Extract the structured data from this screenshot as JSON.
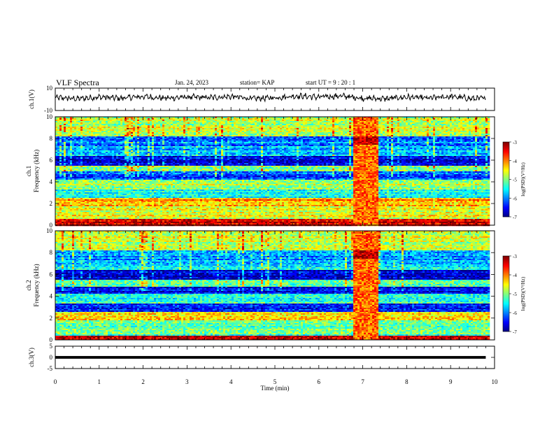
{
  "header": {
    "title": "VLF Spectra",
    "date": "Jan. 24, 2023",
    "station": "station= KAP",
    "start": "start  UT =   9 : 20 : 1"
  },
  "chart_data": [
    {
      "type": "line",
      "panel": "ch1-waveform",
      "ylabel": "ch.1(V)",
      "ylim": [
        -10,
        10
      ],
      "yticks": [
        "10",
        "-10"
      ],
      "x": [
        0.0,
        0.5,
        1.0,
        1.5,
        2.0,
        2.5,
        3.0,
        3.5,
        4.0,
        4.5,
        5.0,
        5.5,
        6.0,
        6.5,
        7.0,
        7.5,
        8.0,
        8.5,
        9.0,
        9.5,
        9.8
      ],
      "values": [
        1.5,
        0.5,
        2.0,
        1.0,
        2.5,
        1.0,
        2.0,
        1.5,
        2.5,
        0.5,
        1.5,
        3.0,
        2.0,
        3.0,
        1.0,
        0.5,
        2.0,
        1.0,
        2.5,
        0.5,
        1.0
      ],
      "line_color": "#000000"
    },
    {
      "type": "heatmap",
      "panel": "ch1-spectrogram",
      "ylabel": "ch.1\nFrequency (kHz)",
      "ylim": [
        0,
        10
      ],
      "yticks": [
        "0",
        "2",
        "4",
        "6",
        "8",
        "10"
      ],
      "xlim": [
        0,
        10
      ],
      "colorbar": {
        "label": "log(PSD)(V²/Hz)",
        "range": [
          -7,
          -3
        ],
        "ticks": [
          "-3",
          "-4",
          "-5",
          "-6",
          "-7"
        ]
      },
      "burst_time_min": [
        6.75,
        7.35
      ],
      "bands_khz": [
        {
          "lo": 0.0,
          "hi": 0.6,
          "level": -3.3
        },
        {
          "lo": 0.6,
          "hi": 1.8,
          "level": -4.6
        },
        {
          "lo": 1.8,
          "hi": 2.6,
          "level": -4.1
        },
        {
          "lo": 2.6,
          "hi": 3.4,
          "level": -5.5
        },
        {
          "lo": 3.4,
          "hi": 4.3,
          "level": -4.8
        },
        {
          "lo": 4.3,
          "hi": 5.0,
          "level": -6.2
        },
        {
          "lo": 5.0,
          "hi": 5.6,
          "level": -5.0
        },
        {
          "lo": 5.6,
          "hi": 6.5,
          "level": -6.6
        },
        {
          "lo": 6.5,
          "hi": 7.4,
          "level": -5.7
        },
        {
          "lo": 7.4,
          "hi": 8.3,
          "level": -6.0
        },
        {
          "lo": 8.3,
          "hi": 10.0,
          "level": -4.8
        }
      ]
    },
    {
      "type": "heatmap",
      "panel": "ch2-spectrogram",
      "ylabel": "ch.2\nFrequency (kHz)",
      "ylim": [
        0,
        10
      ],
      "yticks": [
        "0",
        "2",
        "4",
        "6",
        "8",
        "10"
      ],
      "xlim": [
        0,
        10
      ],
      "colorbar": {
        "label": "log(PSD)(V²/Hz)",
        "range": [
          -7,
          -3
        ],
        "ticks": [
          "-3",
          "-4",
          "-5",
          "-6",
          "-7"
        ]
      },
      "burst_time_min": [
        6.75,
        7.35
      ],
      "bands_khz": [
        {
          "lo": 0.0,
          "hi": 0.4,
          "level": -3.3
        },
        {
          "lo": 0.4,
          "hi": 1.8,
          "level": -5.2
        },
        {
          "lo": 1.8,
          "hi": 2.6,
          "level": -4.5
        },
        {
          "lo": 2.6,
          "hi": 3.4,
          "level": -6.3
        },
        {
          "lo": 3.4,
          "hi": 4.3,
          "level": -5.3
        },
        {
          "lo": 4.3,
          "hi": 5.0,
          "level": -6.6
        },
        {
          "lo": 5.0,
          "hi": 5.6,
          "level": -5.2
        },
        {
          "lo": 5.6,
          "hi": 6.5,
          "level": -6.7
        },
        {
          "lo": 6.5,
          "hi": 7.4,
          "level": -5.6
        },
        {
          "lo": 7.4,
          "hi": 8.3,
          "level": -5.9
        },
        {
          "lo": 8.3,
          "hi": 10.0,
          "level": -4.7
        }
      ]
    },
    {
      "type": "line",
      "panel": "ch3-waveform",
      "ylabel": "ch.3(V)",
      "ylim": [
        -5,
        5
      ],
      "yticks": [
        "5",
        "0",
        "-5"
      ],
      "x": [
        0,
        9.8
      ],
      "values": [
        0,
        0
      ],
      "band_halfwidth_v": 0.6,
      "line_color": "#000000"
    }
  ],
  "x_axis": {
    "label": "Time (min)",
    "ticks": [
      "0",
      "1",
      "2",
      "3",
      "4",
      "5",
      "6",
      "7",
      "8",
      "9",
      "10"
    ],
    "xlim": [
      0,
      10
    ]
  }
}
